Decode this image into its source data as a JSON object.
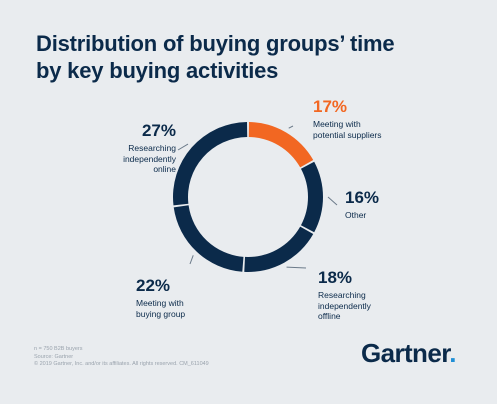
{
  "title_lines": [
    "Distribution of buying groups’ time",
    "by key buying activities"
  ],
  "chart_data": {
    "type": "pie",
    "donut": true,
    "title": "Distribution of buying groups’ time by key buying activities",
    "categories": [
      "Meeting with potential suppliers",
      "Other",
      "Researching independently offline",
      "Meeting with buying group",
      "Researching independently online"
    ],
    "values": [
      17,
      16,
      18,
      22,
      27
    ],
    "value_labels": [
      "17%",
      "16%",
      "18%",
      "22%",
      "27%"
    ],
    "colors": [
      "#f26722",
      "#0b2a4a",
      "#0b2a4a",
      "#0b2a4a",
      "#0b2a4a"
    ],
    "label_lines": [
      [
        "Meeting with",
        "potential suppliers"
      ],
      [
        "Other"
      ],
      [
        "Researching",
        "independently",
        "offline"
      ],
      [
        "Meeting with",
        "buying group"
      ],
      [
        "Researching",
        "independently",
        "online"
      ]
    ]
  },
  "footnote": [
    "n = 750 B2B buyers",
    "Source: Gartner",
    "© 2019 Gartner, Inc. and/or its affiliates. All rights reserved. CM_611049"
  ],
  "brand": {
    "name": "Gartner",
    "dot": "."
  }
}
